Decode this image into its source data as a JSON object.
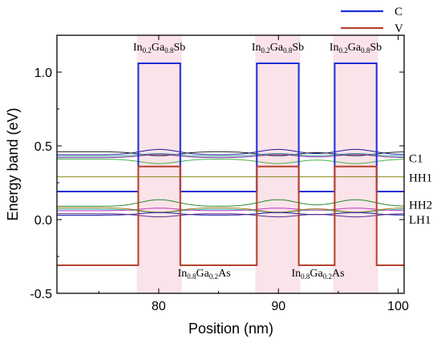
{
  "chart_data": {
    "type": "line",
    "title": "",
    "xlabel": "Position (nm)",
    "ylabel": "Energy band (eV)",
    "xlim": [
      71.5,
      100.5
    ],
    "ylim": [
      -0.5,
      1.25
    ],
    "xticks": [
      80,
      90,
      100
    ],
    "yticks": [
      -0.5,
      0.0,
      0.5,
      1.0
    ],
    "xtick_labels": [
      "80",
      "90",
      "100"
    ],
    "ytick_labels": [
      "-0.5",
      "0.0",
      "0.5",
      "1.0"
    ],
    "legend": {
      "placement": "top-right",
      "entries": [
        {
          "name": "C",
          "color": "#1f2fd6"
        },
        {
          "name": "V",
          "color": "#b5422d"
        }
      ]
    },
    "series": [
      {
        "name": "C",
        "color": "#1f2fd6",
        "x": [
          71.5,
          78.3,
          78.3,
          81.8,
          81.8,
          88.2,
          88.2,
          91.7,
          91.7,
          94.7,
          94.7,
          98.2,
          98.2,
          100.5
        ],
        "y": [
          0.19,
          0.19,
          1.06,
          1.06,
          0.19,
          0.19,
          1.06,
          1.06,
          0.19,
          0.19,
          1.06,
          1.06,
          0.19,
          0.19
        ]
      },
      {
        "name": "V",
        "color": "#b5422d",
        "x": [
          71.5,
          78.3,
          78.3,
          81.8,
          81.8,
          88.2,
          88.2,
          91.7,
          91.7,
          94.7,
          94.7,
          98.2,
          98.2,
          100.5
        ],
        "y": [
          -0.31,
          -0.31,
          0.36,
          0.36,
          -0.31,
          -0.31,
          0.36,
          0.36,
          -0.31,
          -0.31,
          0.36,
          0.36,
          -0.31,
          -0.31
        ]
      }
    ],
    "levels": [
      {
        "label": "C1",
        "y": 0.44,
        "amp": 0.012,
        "color": "#1a1aa0"
      },
      {
        "label": "",
        "y": 0.46,
        "amp": 0.015,
        "color": "#222222"
      },
      {
        "label": "",
        "y": 0.43,
        "amp": 0.01,
        "color": "#3aa0a0"
      },
      {
        "label": "",
        "y": 0.41,
        "amp": 0.01,
        "color": "#48b048"
      },
      {
        "label": "",
        "y": 0.42,
        "amp": 0.012,
        "color": "#7a2a9a"
      },
      {
        "label": "HH1",
        "y": 0.29,
        "amp": 0.0,
        "color": "#8a8a10"
      },
      {
        "label": "HH2",
        "y": 0.09,
        "amp": 0.015,
        "color": "#2a8a2a"
      },
      {
        "label": "",
        "y": 0.07,
        "amp": 0.012,
        "color": "#3bb5b5"
      },
      {
        "label": "",
        "y": 0.06,
        "amp": 0.01,
        "color": "#c03ac0"
      },
      {
        "label": "",
        "y": 0.08,
        "amp": 0.01,
        "color": "#a08010"
      },
      {
        "label": "LH1",
        "y": 0.03,
        "amp": 0.01,
        "color": "#1a1aa0"
      },
      {
        "label": "",
        "y": 0.04,
        "amp": 0.012,
        "color": "#5a2a8a"
      }
    ],
    "wells": [
      {
        "label_main": "In",
        "sub1": "0.2",
        "mid": "Ga",
        "sub2": "0.8",
        "end": "Sb",
        "x": 80.05
      },
      {
        "label_main": "In",
        "sub1": "0.2",
        "mid": "Ga",
        "sub2": "0.8",
        "end": "Sb",
        "x": 89.95
      },
      {
        "label_main": "In",
        "sub1": "0.2",
        "mid": "Ga",
        "sub2": "0.8",
        "end": "Sb",
        "x": 96.45
      }
    ],
    "barrier_labels": [
      {
        "label_main": "In",
        "sub1": "0.8",
        "mid": "Ga",
        "sub2": "0.2",
        "end": "As",
        "x": 83.8
      },
      {
        "label_main": "In",
        "sub1": "0.8",
        "mid": "Ga",
        "sub2": "0.2",
        "end": "As",
        "x": 93.3
      }
    ]
  }
}
